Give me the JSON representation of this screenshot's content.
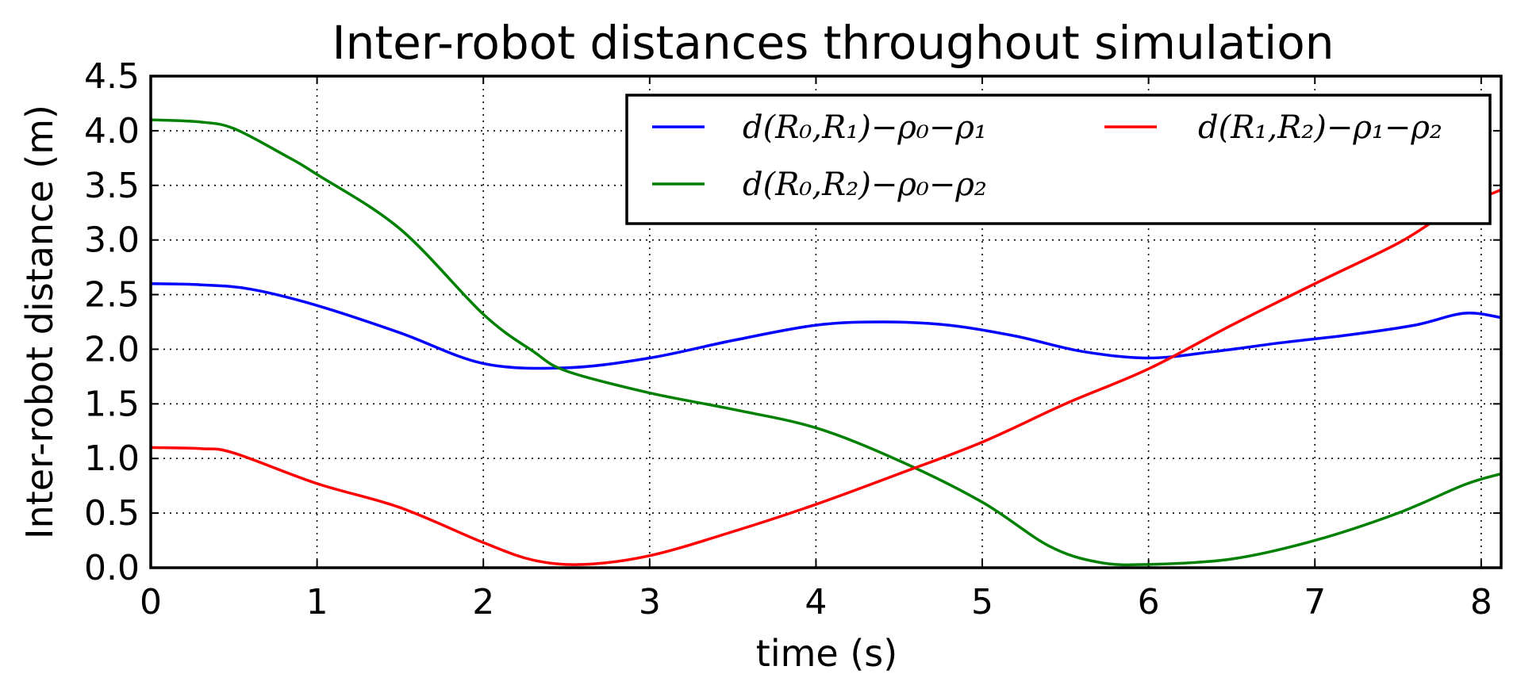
{
  "chart_data": {
    "type": "line",
    "title": "Inter-robot distances throughout simulation",
    "xlabel": "time (s)",
    "ylabel": "Inter-robot distance (m)",
    "xlim": [
      0,
      8.12
    ],
    "ylim": [
      0,
      4.5
    ],
    "xticks": [
      0,
      1,
      2,
      3,
      4,
      5,
      6,
      7,
      8
    ],
    "yticks": [
      0.0,
      0.5,
      1.0,
      1.5,
      2.0,
      2.5,
      3.0,
      3.5,
      4.0,
      4.5
    ],
    "xtick_labels": [
      "0",
      "1",
      "2",
      "3",
      "4",
      "5",
      "6",
      "7",
      "8"
    ],
    "ytick_labels": [
      "0.0",
      "0.5",
      "1.0",
      "1.5",
      "2.0",
      "2.5",
      "3.0",
      "3.5",
      "4.0",
      "4.5"
    ],
    "grid": true,
    "legend_position": "top-right",
    "series": [
      {
        "name": "d(R₀,R₁)−ρ₀−ρ₁",
        "color": "#0000ff",
        "x": [
          0,
          0.3,
          0.6,
          1.0,
          1.5,
          2.0,
          2.5,
          3.0,
          3.5,
          4.0,
          4.4,
          4.8,
          5.2,
          5.6,
          6.0,
          6.4,
          6.8,
          7.2,
          7.6,
          7.9,
          8.12
        ],
        "y": [
          2.6,
          2.59,
          2.55,
          2.4,
          2.15,
          1.87,
          1.83,
          1.92,
          2.08,
          2.22,
          2.25,
          2.22,
          2.12,
          1.98,
          1.92,
          1.98,
          2.06,
          2.13,
          2.22,
          2.33,
          2.29
        ]
      },
      {
        "name": "d(R₀,R₂)−ρ₀−ρ₂",
        "color": "#008000",
        "x": [
          0,
          0.3,
          0.5,
          0.8,
          1.0,
          1.5,
          2.0,
          2.3,
          2.5,
          3.0,
          3.5,
          4.0,
          4.5,
          5.0,
          5.4,
          5.7,
          6.0,
          6.5,
          7.0,
          7.5,
          7.9,
          8.12
        ],
        "y": [
          4.1,
          4.08,
          4.02,
          3.78,
          3.6,
          3.1,
          2.32,
          1.98,
          1.8,
          1.6,
          1.45,
          1.28,
          0.98,
          0.6,
          0.2,
          0.05,
          0.03,
          0.08,
          0.25,
          0.5,
          0.76,
          0.86
        ]
      },
      {
        "name": "d(R₁,R₂)−ρ₁−ρ₂",
        "color": "#ff0000",
        "x": [
          0,
          0.3,
          0.5,
          1.0,
          1.5,
          2.0,
          2.3,
          2.6,
          3.0,
          3.5,
          4.0,
          4.5,
          5.0,
          5.5,
          6.0,
          6.5,
          7.0,
          7.5,
          7.8,
          8.12
        ],
        "y": [
          1.1,
          1.09,
          1.05,
          0.77,
          0.55,
          0.23,
          0.07,
          0.03,
          0.11,
          0.33,
          0.58,
          0.86,
          1.15,
          1.5,
          1.82,
          2.22,
          2.6,
          2.97,
          3.25,
          3.46
        ]
      }
    ]
  }
}
